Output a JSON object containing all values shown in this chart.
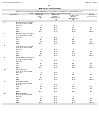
{
  "background_color": "#ffffff",
  "header_left": "US 2011/0009405 A1",
  "header_right": "May. 8, 2011",
  "page_number": "27",
  "table_title": "TABLE 5-continued",
  "table_subtitle": "Reduction in maximum platelet aggregation induced by collagen in human platelet rich plasma (PRP) after incubation",
  "col1_header": "Compound",
  "col2_header": "Berberine\nConc.\n(μM)",
  "col3_header": "Maximum\nPlatelet\nAggregation\n(%)",
  "col4_header": "Inhibition of\nPlatelet\nAggregation\n(%)",
  "col5_header": "p-value\n(vs. control)",
  "rows": [
    [
      "6",
      "Berberine chloride\n0.3 mM collagen",
      "",
      "",
      "",
      ""
    ],
    [
      "",
      "Control",
      "0",
      "68.2",
      "0",
      ""
    ],
    [
      "",
      "Low",
      "10",
      "64.3",
      "5.7",
      "NS"
    ],
    [
      "",
      "Mid",
      "30",
      "58.1",
      "14.8",
      "NS"
    ],
    [
      "",
      "High",
      "100",
      "51.4",
      "24.6",
      "0.018"
    ],
    [
      "7",
      "Berberine chloride\n1.0 mM collagen",
      "",
      "",
      "",
      ""
    ],
    [
      "",
      "Control",
      "0",
      "74.5",
      "0",
      ""
    ],
    [
      "",
      "Low",
      "10",
      "70.2",
      "5.8",
      "NS"
    ],
    [
      "",
      "Mid",
      "30",
      "63.8",
      "14.4",
      "NS"
    ],
    [
      "",
      "High",
      "100",
      "56.1",
      "24.7",
      "0.022"
    ],
    [
      "8",
      "Coptisine chloride\n0.3 mM collagen",
      "",
      "",
      "",
      ""
    ],
    [
      "",
      "Control",
      "0",
      "68.2",
      "0",
      ""
    ],
    [
      "",
      "Low",
      "10",
      "63.9",
      "6.3",
      "NS"
    ],
    [
      "",
      "Mid",
      "30",
      "57.4",
      "15.8",
      "NS"
    ],
    [
      "",
      "High",
      "100",
      "50.2",
      "26.4",
      "0.011"
    ],
    [
      "9",
      "Palmatine chloride\n0.3 mM collagen",
      "",
      "",
      "",
      ""
    ],
    [
      "",
      "Control",
      "0",
      "68.2",
      "0",
      ""
    ],
    [
      "",
      "Low",
      "10",
      "64.8",
      "5.0",
      "NS"
    ],
    [
      "",
      "Mid",
      "30",
      "58.9",
      "13.6",
      "NS"
    ],
    [
      "",
      "High",
      "100",
      "52.3",
      "23.3",
      "0.041"
    ],
    [
      "10",
      "Jatrorrhizine\n0.3 mM collagen",
      "",
      "",
      "",
      ""
    ],
    [
      "",
      "Control",
      "0",
      "68.2",
      "0",
      ""
    ],
    [
      "",
      "Low",
      "10",
      "65.1",
      "4.5",
      "NS"
    ],
    [
      "",
      "Mid",
      "30",
      "59.3",
      "13.1",
      "NS"
    ],
    [
      "",
      "High",
      "100",
      "53.2",
      "22.0",
      "0.049"
    ],
    [
      "11",
      "Columbamine\n0.3 mM collagen",
      "",
      "",
      "",
      ""
    ],
    [
      "",
      "Control",
      "0",
      "68.2",
      "0",
      ""
    ],
    [
      "",
      "Low",
      "10",
      "65.7",
      "3.7",
      "NS"
    ],
    [
      "",
      "Mid",
      "30",
      "60.1",
      "11.9",
      "NS"
    ],
    [
      "",
      "High",
      "100",
      "54.4",
      "20.2",
      "NS"
    ],
    [
      "12",
      "Berberrubine\n0.3 mM collagen",
      "",
      "",
      "",
      ""
    ],
    [
      "",
      "Control",
      "0",
      "68.2",
      "0",
      ""
    ],
    [
      "",
      "Low",
      "10",
      "64.5",
      "5.4",
      "NS"
    ],
    [
      "",
      "Mid",
      "30",
      "58.3",
      "14.5",
      "NS"
    ],
    [
      "",
      "High",
      "100",
      "51.8",
      "24.1",
      "0.029"
    ]
  ]
}
